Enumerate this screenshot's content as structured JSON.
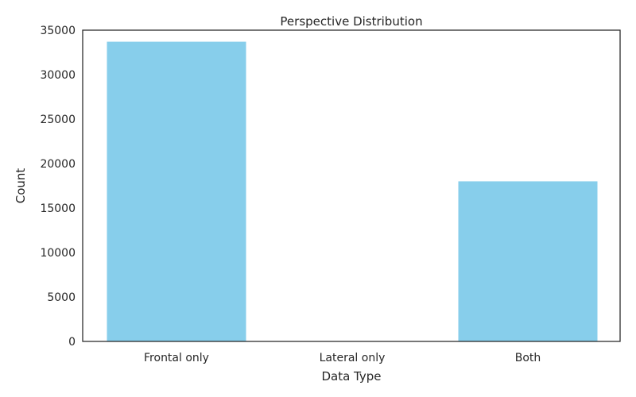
{
  "chart_data": {
    "type": "bar",
    "title": "Perspective Distribution",
    "xlabel": "Data Type",
    "ylabel": "Count",
    "categories": [
      "Frontal only",
      "Lateral only",
      "Both"
    ],
    "values": [
      33700,
      0,
      18000
    ],
    "ylim": [
      0,
      35000
    ],
    "yticks": [
      0,
      5000,
      10000,
      15000,
      20000,
      25000,
      30000,
      35000
    ],
    "bar_color": "#87CEEB",
    "grid": false,
    "legend": "none"
  }
}
